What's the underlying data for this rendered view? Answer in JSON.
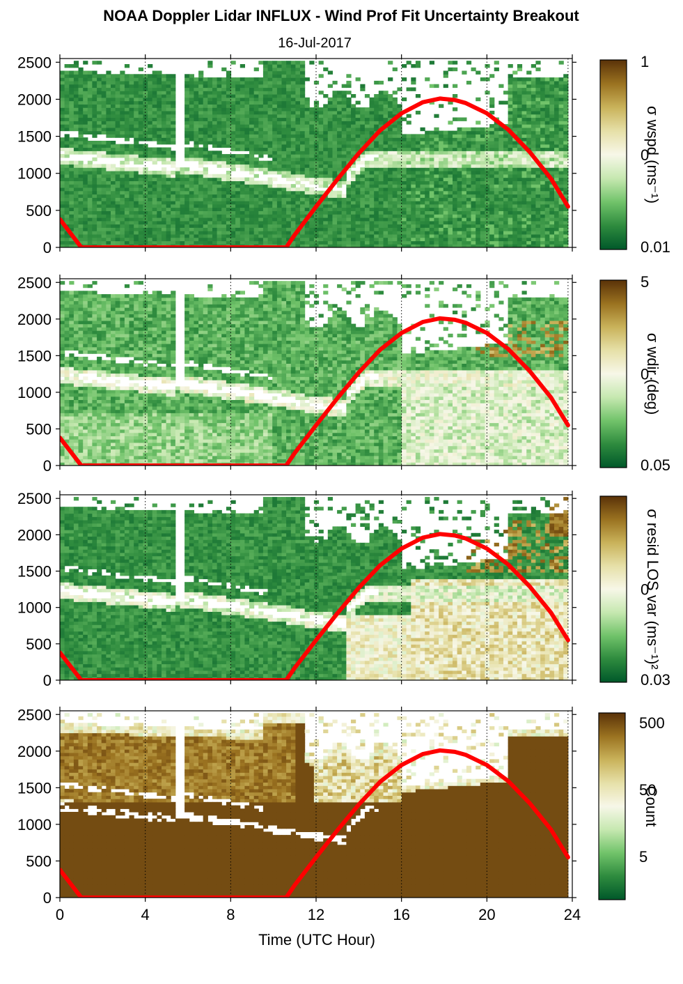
{
  "title": "NOAA Doppler Lidar INFLUX - Wind Prof Fit Uncertainty Breakout",
  "subtitle": "16-Jul-2017",
  "xlabel": "Time (UTC Hour)",
  "colors": {
    "sun_curve": "#ff0000",
    "colormap": [
      "#00582a",
      "#2e8b3e",
      "#71c36a",
      "#c6e8b0",
      "#f7f7e8",
      "#e6e0a8",
      "#c9b25a",
      "#9a7220",
      "#5a3208"
    ],
    "missing": "#ffffff"
  },
  "chart_data": [
    {
      "type": "heatmap",
      "id": "wspd",
      "colorbar_label": "σ wspd (ms⁻¹)",
      "colorbar_ticks": [
        "1",
        "0",
        "0.01"
      ],
      "colorbar_scale": "log",
      "xlim": [
        0,
        24
      ],
      "ylim": [
        0,
        2550
      ],
      "xticks": [
        0,
        4,
        8,
        12,
        16,
        20,
        24
      ],
      "yticks": [
        0,
        500,
        1000,
        1500,
        2000,
        2500
      ],
      "grid": "vertical dotted at 4-hour ticks",
      "overlay_series": "sun_elevation_curve"
    },
    {
      "type": "heatmap",
      "id": "wdir",
      "colorbar_label": "σ wdir (deg)",
      "colorbar_ticks": [
        "5",
        "0.",
        "0.05"
      ],
      "colorbar_scale": "log",
      "xlim": [
        0,
        24
      ],
      "ylim": [
        0,
        2550
      ],
      "xticks": [
        0,
        4,
        8,
        12,
        16,
        20,
        24
      ],
      "yticks": [
        0,
        500,
        1000,
        1500,
        2000,
        2500
      ],
      "grid": "vertical dotted at 4-hour ticks",
      "overlay_series": "sun_elevation_curve"
    },
    {
      "type": "heatmap",
      "id": "resid",
      "colorbar_label": "σ resid LOS var (ms⁻¹)²",
      "colorbar_ticks": [
        "0",
        "0.03"
      ],
      "colorbar_scale": "log",
      "xlim": [
        0,
        24
      ],
      "ylim": [
        0,
        2550
      ],
      "xticks": [
        0,
        4,
        8,
        12,
        16,
        20,
        24
      ],
      "yticks": [
        0,
        500,
        1000,
        1500,
        2000,
        2500
      ],
      "grid": "vertical dotted at 4-hour ticks",
      "overlay_series": "sun_elevation_curve"
    },
    {
      "type": "heatmap",
      "id": "count",
      "colorbar_label": "Count",
      "colorbar_ticks": [
        "500",
        "50",
        "5"
      ],
      "colorbar_scale": "log",
      "xlim": [
        0,
        24
      ],
      "ylim": [
        0,
        2550
      ],
      "xticks": [
        0,
        4,
        8,
        12,
        16,
        20,
        24
      ],
      "yticks": [
        0,
        500,
        1000,
        1500,
        2000,
        2500
      ],
      "grid": "vertical dotted at 4-hour ticks",
      "overlay_series": "sun_elevation_curve"
    }
  ],
  "sun_elevation_curve": {
    "x": [
      0,
      1,
      2,
      4,
      6,
      8,
      10,
      10.6,
      11,
      12,
      13,
      14,
      15,
      16,
      17,
      17.8,
      18.5,
      19,
      20,
      21,
      22,
      23,
      23.8
    ],
    "y": [
      380,
      0,
      0,
      0,
      0,
      0,
      0,
      0,
      170,
      550,
      920,
      1270,
      1580,
      1810,
      1960,
      2010,
      1990,
      1950,
      1810,
      1590,
      1290,
      930,
      550
    ]
  }
}
